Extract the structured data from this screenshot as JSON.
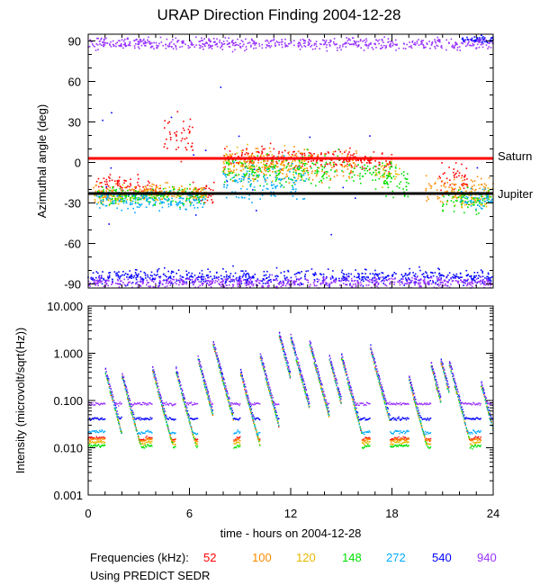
{
  "title": "URAP Direction Finding  2004-12-28",
  "chart_data": [
    {
      "type": "scatter",
      "panel": "azimuth",
      "ylabel": "Azimuthal angle (deg)",
      "ylim": [
        -93,
        95
      ],
      "yticks": [
        90,
        60,
        30,
        0,
        -30,
        -60,
        -90
      ],
      "reference_lines": [
        {
          "name": "Saturn",
          "value": 3,
          "color": "#ff0000"
        },
        {
          "name": "Jupiter",
          "value": -23,
          "color": "#000000"
        }
      ],
      "series": [
        {
          "freq": "52",
          "color": "#ff0000",
          "segments": [
            [
              0.5,
              3,
              -17,
              5
            ],
            [
              3,
              4.3,
              -20,
              4
            ],
            [
              4.5,
              6.2,
              18,
              12
            ],
            [
              6,
              7.5,
              -22,
              5
            ],
            [
              8,
              16,
              3,
              6
            ],
            [
              16,
              18,
              0,
              5
            ],
            [
              20.8,
              22.5,
              -12,
              8
            ]
          ]
        },
        {
          "freq": "100",
          "color": "#ff8c00",
          "segments": [
            [
              0.3,
              2,
              -24,
              5
            ],
            [
              3,
              7,
              -22,
              4
            ],
            [
              8,
              16,
              -2,
              8
            ],
            [
              20,
              24,
              -20,
              8
            ]
          ]
        },
        {
          "freq": "120",
          "color": "#e6b800",
          "segments": [
            [
              0.3,
              2,
              -26,
              4
            ],
            [
              2,
              7,
              -23,
              4
            ],
            [
              8,
              13,
              -3,
              8
            ],
            [
              17,
              18.5,
              -8,
              6
            ],
            [
              21.5,
              24,
              -25,
              5
            ]
          ]
        },
        {
          "freq": "148",
          "color": "#00e000",
          "segments": [
            [
              0.5,
              7,
              -25,
              5
            ],
            [
              8,
              18,
              -6,
              8
            ],
            [
              17.5,
              19,
              -15,
              10
            ],
            [
              21,
              24,
              -28,
              6
            ]
          ]
        },
        {
          "freq": "272",
          "color": "#00aaff",
          "segments": [
            [
              0.5,
              7,
              -28,
              5
            ],
            [
              8,
              13,
              -15,
              10
            ],
            [
              22,
              24,
              -27,
              5
            ]
          ]
        },
        {
          "freq": "540",
          "color": "#0000ff",
          "segments": [
            [
              0,
              24,
              -85,
              4
            ],
            [
              22,
              24,
              91,
              2
            ]
          ],
          "scatter_band": [
            -60,
            60
          ]
        },
        {
          "freq": "940",
          "color": "#9933ff",
          "segments": [
            [
              0,
              24,
              88,
              3
            ],
            [
              0,
              24,
              -89,
              3
            ]
          ]
        }
      ]
    },
    {
      "type": "line",
      "panel": "intensity",
      "ylabel": "Intensity (microvolt/sqrt(Hz))",
      "yscale": "log",
      "ylim": [
        0.001,
        10
      ],
      "yticks": [
        "10.000",
        "1.000",
        "0.100",
        "0.010",
        "0.001"
      ],
      "xlabel": "time - hours on 2004-12-28",
      "xlim": [
        0,
        24
      ],
      "xticks": [
        "0",
        "6",
        "12",
        "18",
        "24"
      ],
      "bursts": [
        [
          1.0,
          0.5
        ],
        [
          2.0,
          0.4
        ],
        [
          3.8,
          0.55
        ],
        [
          5.2,
          0.5
        ],
        [
          6.5,
          0.9
        ],
        [
          7.4,
          1.9
        ],
        [
          9.0,
          0.5
        ],
        [
          10.2,
          1.0
        ],
        [
          11.3,
          3.0
        ],
        [
          12.0,
          2.5
        ],
        [
          13.1,
          2.0
        ],
        [
          14.3,
          0.9
        ],
        [
          15.0,
          1.0
        ],
        [
          16.7,
          1.6
        ],
        [
          19.0,
          0.35
        ],
        [
          20.3,
          0.7
        ],
        [
          20.9,
          0.8
        ],
        [
          21.4,
          0.7
        ],
        [
          23.3,
          0.25
        ]
      ],
      "series": [
        {
          "freq": "52",
          "color": "#ff0000",
          "baseline": 0.016,
          "dip": 0.5
        },
        {
          "freq": "100",
          "color": "#ff8c00",
          "baseline": 0.015,
          "dip": 0.5
        },
        {
          "freq": "120",
          "color": "#e6b800",
          "baseline": 0.013,
          "dip": 0.5
        },
        {
          "freq": "148",
          "color": "#00e000",
          "baseline": 0.011,
          "dip": 0.5
        },
        {
          "freq": "272",
          "color": "#00aaff",
          "baseline": 0.022,
          "dip": 0.6
        },
        {
          "freq": "540",
          "color": "#0000ff",
          "baseline": 0.041,
          "dip": 1
        },
        {
          "freq": "940",
          "color": "#9933ff",
          "baseline": 0.085,
          "dip": 1
        }
      ]
    }
  ],
  "legend": {
    "label": "Frequencies (kHz):",
    "items": [
      {
        "text": "52",
        "color": "#ff0000"
      },
      {
        "text": "100",
        "color": "#ff8c00"
      },
      {
        "text": "120",
        "color": "#e6b800"
      },
      {
        "text": "148",
        "color": "#00e000"
      },
      {
        "text": "272",
        "color": "#00aaff"
      },
      {
        "text": "540",
        "color": "#0000ff"
      },
      {
        "text": "940",
        "color": "#9933ff"
      }
    ]
  },
  "footer_note": "Using PREDICT SEDR"
}
